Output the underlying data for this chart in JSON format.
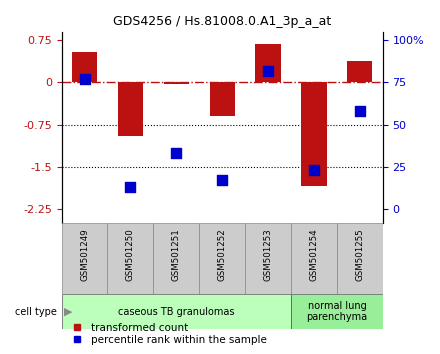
{
  "title": "GDS4256 / Hs.81008.0.A1_3p_a_at",
  "samples": [
    "GSM501249",
    "GSM501250",
    "GSM501251",
    "GSM501252",
    "GSM501253",
    "GSM501254",
    "GSM501255"
  ],
  "transformed_count": [
    0.55,
    -0.95,
    -0.03,
    -0.6,
    0.68,
    -1.85,
    0.38
  ],
  "percentile_rank": [
    77,
    13,
    33,
    17,
    82,
    23,
    58
  ],
  "ylim_left": [
    -2.5,
    0.9
  ],
  "yticks_left": [
    0.75,
    0,
    -0.75,
    -1.5,
    -2.25
  ],
  "right_axis_values": [
    100,
    75,
    50,
    25,
    0
  ],
  "right_axis_positions": [
    0.9,
    0.375,
    -0.15,
    -0.675,
    -1.2
  ],
  "bar_color": "#bb1111",
  "dot_color": "#0000cc",
  "dotted_lines": [
    -0.75,
    -1.5
  ],
  "bar_width": 0.55,
  "dot_size": 55,
  "ct_color1": "#bbffbb",
  "ct_color2": "#99ee99"
}
